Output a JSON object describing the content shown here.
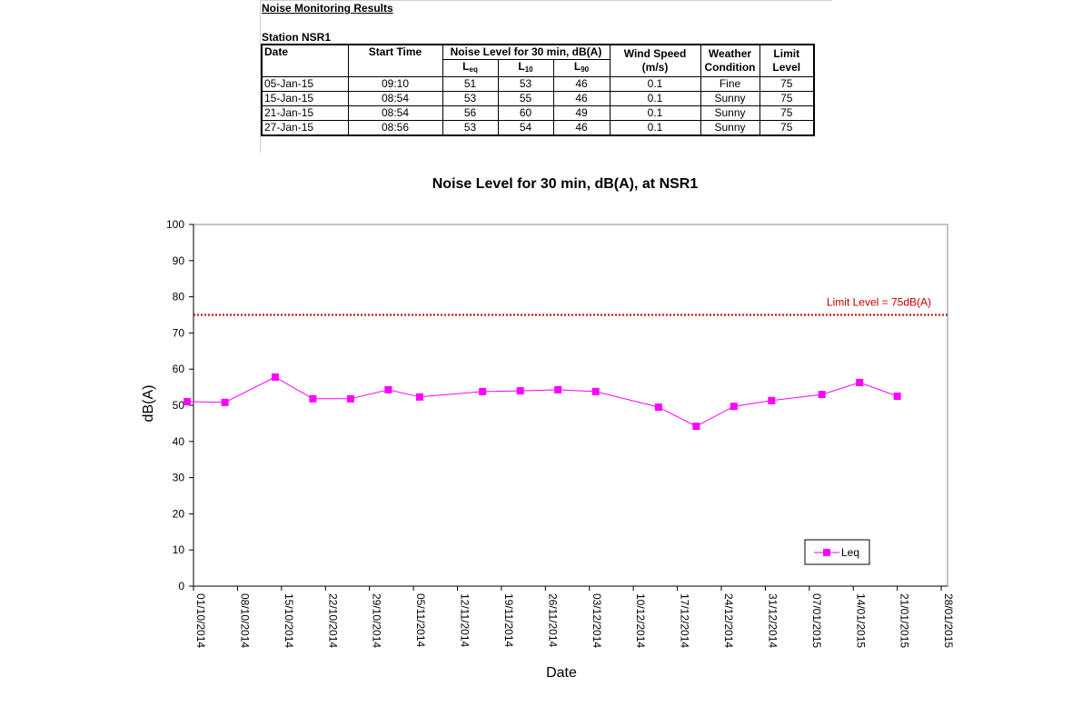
{
  "sheet": {
    "title": "Noise Monitoring Results",
    "station": "Station NSR1",
    "headers": {
      "date": "Date",
      "start_time": "Start Time",
      "noise_level": "Noise Level for 30 min, dB(A)",
      "leq_main": "L",
      "leq_sub": "eq",
      "l10_main": "L",
      "l10_sub": "10",
      "l90_main": "L",
      "l90_sub": "90",
      "wind_speed": "Wind Speed",
      "wind_unit": "(m/s)",
      "weather": "Weather",
      "condition": "Condition",
      "limit": "Limit",
      "level": "Level"
    },
    "rows": [
      {
        "date": "05-Jan-15",
        "time": "09:10",
        "leq": "51",
        "l10": "53",
        "l90": "46",
        "wind": "0.1",
        "weather": "Fine",
        "limit": "75"
      },
      {
        "date": "15-Jan-15",
        "time": "08:54",
        "leq": "53",
        "l10": "55",
        "l90": "46",
        "wind": "0.1",
        "weather": "Sunny",
        "limit": "75"
      },
      {
        "date": "21-Jan-15",
        "time": "08:54",
        "leq": "56",
        "l10": "60",
        "l90": "49",
        "wind": "0.1",
        "weather": "Sunny",
        "limit": "75"
      },
      {
        "date": "27-Jan-15",
        "time": "08:56",
        "leq": "53",
        "l10": "54",
        "l90": "46",
        "wind": "0.1",
        "weather": "Sunny",
        "limit": "75"
      }
    ]
  },
  "chart_data": {
    "type": "line",
    "title": "Noise Level for 30 min, dB(A), at NSR1",
    "xlabel": "Date",
    "ylabel": "dB(A)",
    "ylim": [
      0,
      100
    ],
    "yticks": [
      "0",
      "10",
      "20",
      "30",
      "40",
      "50",
      "60",
      "70",
      "80",
      "90",
      "100"
    ],
    "xlim": [
      "2014-10-01",
      "2015-01-29"
    ],
    "xticks": [
      {
        "date": "2014-10-01",
        "label": "01/10/2014"
      },
      {
        "date": "2014-10-08",
        "label": "08/10/2014"
      },
      {
        "date": "2014-10-15",
        "label": "15/10/2014"
      },
      {
        "date": "2014-10-22",
        "label": "22/10/2014"
      },
      {
        "date": "2014-10-29",
        "label": "29/10/2014"
      },
      {
        "date": "2014-11-05",
        "label": "05/11/2014"
      },
      {
        "date": "2014-11-12",
        "label": "12/11/2014"
      },
      {
        "date": "2014-11-19",
        "label": "19/11/2014"
      },
      {
        "date": "2014-11-26",
        "label": "26/11/2014"
      },
      {
        "date": "2014-12-03",
        "label": "03/12/2014"
      },
      {
        "date": "2014-12-10",
        "label": "10/12/2014"
      },
      {
        "date": "2014-12-17",
        "label": "17/12/2014"
      },
      {
        "date": "2014-12-24",
        "label": "24/12/2014"
      },
      {
        "date": "2014-12-31",
        "label": "31/12/2014"
      },
      {
        "date": "2015-01-07",
        "label": "07/01/2015"
      },
      {
        "date": "2015-01-14",
        "label": "14/01/2015"
      },
      {
        "date": "2015-01-21",
        "label": "21/01/2015"
      },
      {
        "date": "2015-01-28",
        "label": "28/01/2015"
      }
    ],
    "series": [
      {
        "name": "Leq",
        "color": "#ff00ff",
        "points": [
          {
            "x": "2014-09-30",
            "y": 51
          },
          {
            "x": "2014-10-06",
            "y": 50.8
          },
          {
            "x": "2014-10-14",
            "y": 57.8
          },
          {
            "x": "2014-10-20",
            "y": 51.8
          },
          {
            "x": "2014-10-26",
            "y": 51.8
          },
          {
            "x": "2014-11-01",
            "y": 54.3
          },
          {
            "x": "2014-11-06",
            "y": 52.3
          },
          {
            "x": "2014-11-16",
            "y": 53.8
          },
          {
            "x": "2014-11-22",
            "y": 54
          },
          {
            "x": "2014-11-28",
            "y": 54.3
          },
          {
            "x": "2014-12-04",
            "y": 53.8
          },
          {
            "x": "2014-12-14",
            "y": 49.5
          },
          {
            "x": "2014-12-20",
            "y": 44.2
          },
          {
            "x": "2014-12-26",
            "y": 49.7
          },
          {
            "x": "2015-01-01",
            "y": 51.3
          },
          {
            "x": "2015-01-09",
            "y": 53
          },
          {
            "x": "2015-01-15",
            "y": 56.3
          },
          {
            "x": "2015-01-21",
            "y": 52.5
          }
        ]
      }
    ],
    "limit": {
      "value": 75,
      "label": "Limit Level = 75dB(A)",
      "color": "#c00000"
    },
    "legend": "bottom-right",
    "grid": false
  }
}
